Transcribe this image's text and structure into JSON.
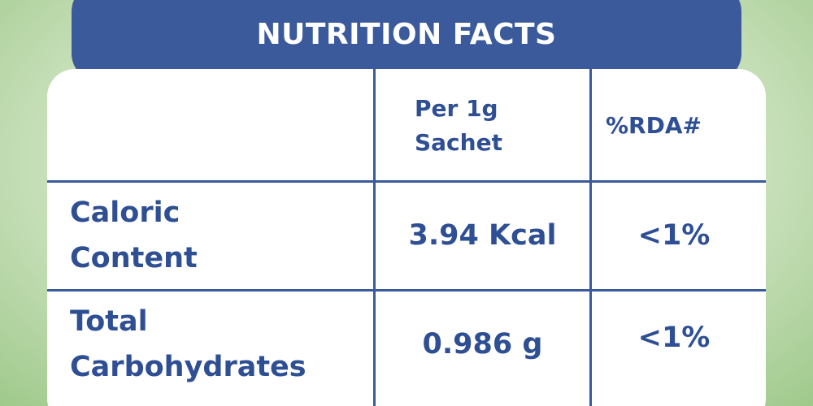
{
  "header": {
    "title": "NUTRITION FACTS"
  },
  "table": {
    "columns": [
      "Per 1g Sachet",
      "%RDA#"
    ],
    "rows": [
      [
        "Caloric Content",
        "3.94 Kcal",
        "<1%"
      ],
      [
        "Total Carbohydrates",
        "0.986 g",
        "<1%"
      ]
    ]
  }
}
